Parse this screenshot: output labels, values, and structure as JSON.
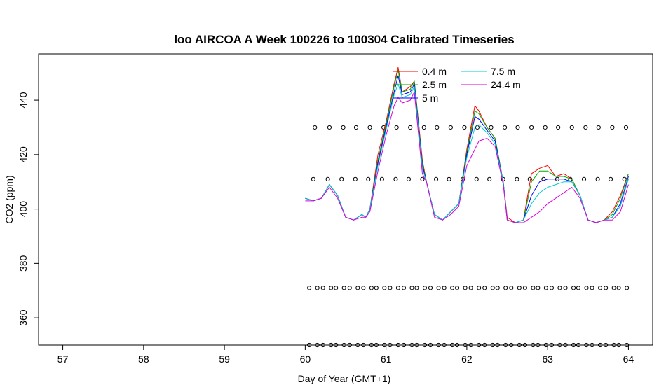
{
  "chart_data": {
    "type": "line",
    "title": "loo AIRCOA A  Week 100226 to 100304  Calibrated Timeseries",
    "xlabel": "Day of Year (GMT+1)",
    "ylabel": "CO2 (ppm)",
    "xlim": [
      56.7,
      64.3
    ],
    "ylim": [
      350,
      457
    ],
    "xticks": [
      "57",
      "58",
      "59",
      "60",
      "61",
      "62",
      "63",
      "64"
    ],
    "yticks": [
      "360",
      "380",
      "400",
      "420",
      "440"
    ],
    "grid": false,
    "legend_position": "top-right",
    "series": [
      {
        "name": "0.4 m",
        "color": "#ff0000",
        "x": [
          60.0,
          60.1,
          60.2,
          60.3,
          60.4,
          60.5,
          60.6,
          60.7,
          60.75,
          60.8,
          60.9,
          61.0,
          61.1,
          61.15,
          61.2,
          61.3,
          61.35,
          61.45,
          61.5,
          61.6,
          61.7,
          61.8,
          61.9,
          62.0,
          62.1,
          62.15,
          62.25,
          62.35,
          62.45,
          62.5,
          62.6,
          62.7,
          62.8,
          62.9,
          63.0,
          63.1,
          63.2,
          63.3,
          63.4,
          63.5,
          63.6,
          63.7,
          63.8,
          63.9,
          64.0
        ],
        "values": [
          404,
          403,
          404,
          409,
          405,
          397,
          396,
          398,
          397,
          400,
          420,
          432,
          446,
          452,
          443,
          445,
          447,
          418,
          410,
          398,
          396,
          399,
          402,
          422,
          438,
          436,
          430,
          426,
          410,
          397,
          395,
          396,
          413,
          415,
          416,
          412,
          413,
          411,
          405,
          396,
          395,
          396,
          399,
          405,
          413
        ]
      },
      {
        "name": "2.5 m",
        "color": "#00aa00",
        "x": [
          60.0,
          60.1,
          60.2,
          60.3,
          60.4,
          60.5,
          60.6,
          60.7,
          60.75,
          60.8,
          60.9,
          61.0,
          61.1,
          61.15,
          61.2,
          61.3,
          61.35,
          61.45,
          61.5,
          61.6,
          61.7,
          61.8,
          61.9,
          62.0,
          62.1,
          62.15,
          62.25,
          62.35,
          62.45,
          62.5,
          62.6,
          62.7,
          62.8,
          62.9,
          63.0,
          63.1,
          63.2,
          63.3,
          63.4,
          63.5,
          63.6,
          63.7,
          63.8,
          63.9,
          64.0
        ],
        "values": [
          404,
          403,
          404,
          409,
          405,
          397,
          396,
          398,
          397,
          400,
          418,
          431,
          445,
          451,
          443,
          444,
          447,
          417,
          410,
          398,
          396,
          399,
          402,
          421,
          436,
          435,
          430,
          426,
          410,
          396,
          395,
          396,
          410,
          414,
          414,
          412,
          412,
          411,
          405,
          396,
          395,
          396,
          398,
          404,
          413
        ]
      },
      {
        "name": "5 m",
        "color": "#0000ff",
        "x": [
          60.0,
          60.1,
          60.2,
          60.3,
          60.4,
          60.5,
          60.6,
          60.7,
          60.75,
          60.8,
          60.9,
          61.0,
          61.1,
          61.15,
          61.2,
          61.3,
          61.35,
          61.45,
          61.5,
          61.6,
          61.7,
          61.8,
          61.9,
          62.0,
          62.1,
          62.15,
          62.25,
          62.35,
          62.45,
          62.5,
          62.6,
          62.7,
          62.8,
          62.9,
          63.0,
          63.1,
          63.2,
          63.3,
          63.4,
          63.5,
          63.6,
          63.7,
          63.8,
          63.9,
          64.0
        ],
        "values": [
          404,
          403,
          404,
          409,
          405,
          397,
          396,
          398,
          397,
          400,
          417,
          430,
          443,
          449,
          442,
          443,
          446,
          416,
          410,
          398,
          396,
          399,
          402,
          420,
          434,
          433,
          429,
          425,
          410,
          396,
          395,
          396,
          405,
          410,
          411,
          411,
          411,
          410,
          405,
          396,
          395,
          396,
          397,
          402,
          412
        ]
      },
      {
        "name": "7.5 m",
        "color": "#00cccc",
        "x": [
          60.0,
          60.1,
          60.2,
          60.3,
          60.4,
          60.5,
          60.6,
          60.7,
          60.75,
          60.8,
          60.9,
          61.0,
          61.1,
          61.15,
          61.2,
          61.3,
          61.35,
          61.45,
          61.5,
          61.6,
          61.7,
          61.8,
          61.9,
          62.0,
          62.1,
          62.15,
          62.25,
          62.35,
          62.45,
          62.5,
          62.6,
          62.7,
          62.8,
          62.9,
          63.0,
          63.1,
          63.2,
          63.3,
          63.4,
          63.5,
          63.6,
          63.7,
          63.8,
          63.9,
          64.0
        ],
        "values": [
          404,
          403,
          404,
          409,
          405,
          397,
          396,
          398,
          397,
          400,
          416,
          429,
          442,
          446,
          441,
          442,
          445,
          415,
          410,
          398,
          396,
          399,
          402,
          419,
          430,
          431,
          428,
          424,
          410,
          396,
          395,
          396,
          402,
          406,
          408,
          409,
          410,
          410,
          405,
          396,
          395,
          396,
          397,
          401,
          411
        ]
      },
      {
        "name": "24.4 m",
        "color": "#dd00dd",
        "x": [
          60.0,
          60.1,
          60.2,
          60.3,
          60.4,
          60.5,
          60.6,
          60.7,
          60.75,
          60.8,
          60.9,
          61.0,
          61.1,
          61.15,
          61.2,
          61.3,
          61.35,
          61.45,
          61.5,
          61.6,
          61.7,
          61.8,
          61.9,
          62.0,
          62.1,
          62.15,
          62.25,
          62.35,
          62.45,
          62.5,
          62.6,
          62.7,
          62.8,
          62.9,
          63.0,
          63.1,
          63.2,
          63.3,
          63.4,
          63.5,
          63.6,
          63.7,
          63.8,
          63.9,
          64.0
        ],
        "values": [
          403,
          403,
          404,
          408,
          404,
          397,
          396,
          397,
          397,
          399,
          414,
          427,
          438,
          441,
          439,
          440,
          443,
          413,
          410,
          397,
          396,
          398,
          401,
          416,
          422,
          425,
          426,
          423,
          409,
          396,
          395,
          395,
          397,
          399,
          402,
          404,
          406,
          408,
          404,
          396,
          395,
          396,
          396,
          399,
          409
        ]
      }
    ],
    "marker_rows": [
      {
        "y": 430,
        "x": [
          60.12,
          60.3,
          60.47,
          60.63,
          60.8,
          60.97,
          61.13,
          61.3,
          61.47,
          61.63,
          61.8,
          61.97,
          62.13,
          62.3,
          62.47,
          62.63,
          62.8,
          62.97,
          63.13,
          63.3,
          63.47,
          63.63,
          63.8,
          63.97
        ]
      },
      {
        "y": 411,
        "x": [
          60.1,
          60.28,
          60.45,
          60.62,
          60.78,
          60.95,
          61.12,
          61.28,
          61.45,
          61.62,
          61.78,
          61.95,
          62.12,
          62.28,
          62.45,
          62.62,
          62.78,
          62.95,
          63.12,
          63.28,
          63.45,
          63.62,
          63.78,
          63.95
        ]
      },
      {
        "y": 371,
        "x": [
          60.05,
          60.15,
          60.22,
          60.32,
          60.38,
          60.48,
          60.55,
          60.65,
          60.72,
          60.82,
          60.88,
          60.98,
          61.05,
          61.15,
          61.22,
          61.32,
          61.38,
          61.48,
          61.55,
          61.65,
          61.72,
          61.82,
          61.88,
          61.98,
          62.05,
          62.15,
          62.22,
          62.32,
          62.38,
          62.48,
          62.55,
          62.65,
          62.72,
          62.82,
          62.88,
          62.98,
          63.05,
          63.15,
          63.22,
          63.32,
          63.38,
          63.48,
          63.55,
          63.65,
          63.72,
          63.82,
          63.88,
          63.98
        ]
      },
      {
        "y": 350,
        "x": [
          60.05,
          60.15,
          60.22,
          60.32,
          60.38,
          60.48,
          60.55,
          60.65,
          60.72,
          60.82,
          60.88,
          60.98,
          61.05,
          61.15,
          61.22,
          61.32,
          61.38,
          61.48,
          61.55,
          61.65,
          61.72,
          61.82,
          61.88,
          61.98,
          62.05,
          62.15,
          62.22,
          62.32,
          62.38,
          62.48,
          62.55,
          62.65,
          62.72,
          62.82,
          62.88,
          62.98,
          63.05,
          63.15,
          63.22,
          63.32,
          63.38,
          63.48,
          63.55,
          63.65,
          63.72,
          63.82,
          63.88,
          63.98
        ]
      }
    ]
  }
}
